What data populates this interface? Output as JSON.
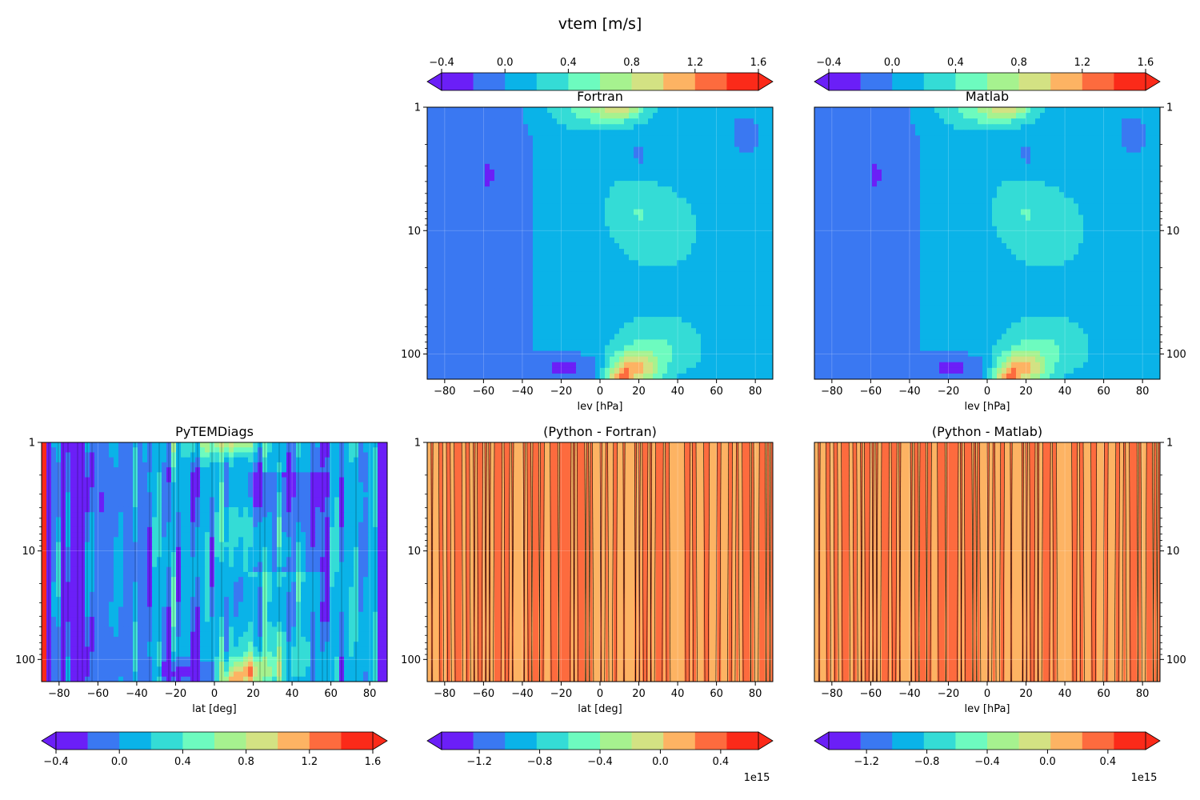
{
  "figure": {
    "suptitle": "vtem [m/s]",
    "cmap": [
      "#6b1ff7",
      "#3a78f2",
      "#0ab3e8",
      "#34dcd6",
      "#6dfbbf",
      "#a6f28f",
      "#d3e283",
      "#fdb363",
      "#fd6b3e",
      "#fb2a19"
    ],
    "contour_line_color": "#000000",
    "grid": true
  },
  "chart_data": [
    {
      "type": "heatmap",
      "title": "Fortran",
      "xlabel": "lev [hPa]",
      "ylabel": "",
      "x_ticks": [
        "−80",
        "−60",
        "−40",
        "−20",
        "0",
        "20",
        "40",
        "60",
        "80"
      ],
      "xlim": [
        -89,
        89
      ],
      "y_ticks": [
        "1",
        "10",
        "100"
      ],
      "y_scale": "log",
      "ylim": [
        160,
        1
      ],
      "y_tick_side": "left",
      "colorbar": {
        "position": "top",
        "ticks": [
          "−0.4",
          "0.0",
          "0.4",
          "0.8",
          "1.2",
          "1.6"
        ],
        "range": [
          -0.4,
          1.6
        ],
        "offset": ""
      },
      "field": "smooth"
    },
    {
      "type": "heatmap",
      "title": "Matlab",
      "xlabel": "lev [hPa]",
      "ylabel": "",
      "x_ticks": [
        "−80",
        "−60",
        "−40",
        "−20",
        "0",
        "20",
        "40",
        "60",
        "80"
      ],
      "xlim": [
        -89,
        89
      ],
      "y_ticks": [
        "1",
        "10",
        "100"
      ],
      "y_scale": "log",
      "ylim": [
        160,
        1
      ],
      "y_tick_side": "right",
      "colorbar": {
        "position": "top",
        "ticks": [
          "−0.4",
          "0.0",
          "0.4",
          "0.8",
          "1.2",
          "1.6"
        ],
        "range": [
          -0.4,
          1.6
        ],
        "offset": ""
      },
      "field": "smooth"
    },
    {
      "type": "heatmap",
      "title": "PyTEMDiags",
      "xlabel": "lat [deg]",
      "ylabel": "",
      "x_ticks": [
        "−80",
        "−60",
        "−40",
        "−20",
        "0",
        "20",
        "40",
        "60",
        "80"
      ],
      "xlim": [
        -89,
        89
      ],
      "y_ticks": [
        "1",
        "10",
        "100"
      ],
      "y_scale": "log",
      "ylim": [
        160,
        1
      ],
      "y_tick_side": "left",
      "colorbar": {
        "position": "bottom",
        "ticks": [
          "−0.4",
          "0.0",
          "0.4",
          "0.8",
          "1.2",
          "1.6"
        ],
        "range": [
          -0.4,
          1.6
        ],
        "offset": ""
      },
      "field": "noisy"
    },
    {
      "type": "heatmap",
      "title": "(Python - Fortran)",
      "xlabel": "lat [deg]",
      "ylabel": "",
      "x_ticks": [
        "−80",
        "−60",
        "−40",
        "−20",
        "0",
        "20",
        "40",
        "60",
        "80"
      ],
      "xlim": [
        -89,
        89
      ],
      "y_ticks": [
        "1",
        "10",
        "100"
      ],
      "y_scale": "log",
      "ylim": [
        160,
        1
      ],
      "y_tick_side": "left",
      "colorbar": {
        "position": "bottom",
        "ticks": [
          "−1.2",
          "−0.8",
          "−0.4",
          "0.0",
          "0.4"
        ],
        "range": [
          -1.45,
          0.65
        ],
        "offset": "1e15"
      },
      "field": "stripes"
    },
    {
      "type": "heatmap",
      "title": "(Python - Matlab)",
      "xlabel": "lev [hPa]",
      "ylabel": "",
      "x_ticks": [
        "−80",
        "−60",
        "−40",
        "−20",
        "0",
        "20",
        "40",
        "60",
        "80"
      ],
      "xlim": [
        -89,
        89
      ],
      "y_ticks": [
        "1",
        "10",
        "100"
      ],
      "y_scale": "log",
      "ylim": [
        160,
        1
      ],
      "y_tick_side": "right",
      "colorbar": {
        "position": "bottom",
        "ticks": [
          "−1.2",
          "−0.8",
          "−0.4",
          "0.0",
          "0.4"
        ],
        "range": [
          -1.45,
          0.65
        ],
        "offset": "1e15"
      },
      "field": "stripes"
    }
  ]
}
